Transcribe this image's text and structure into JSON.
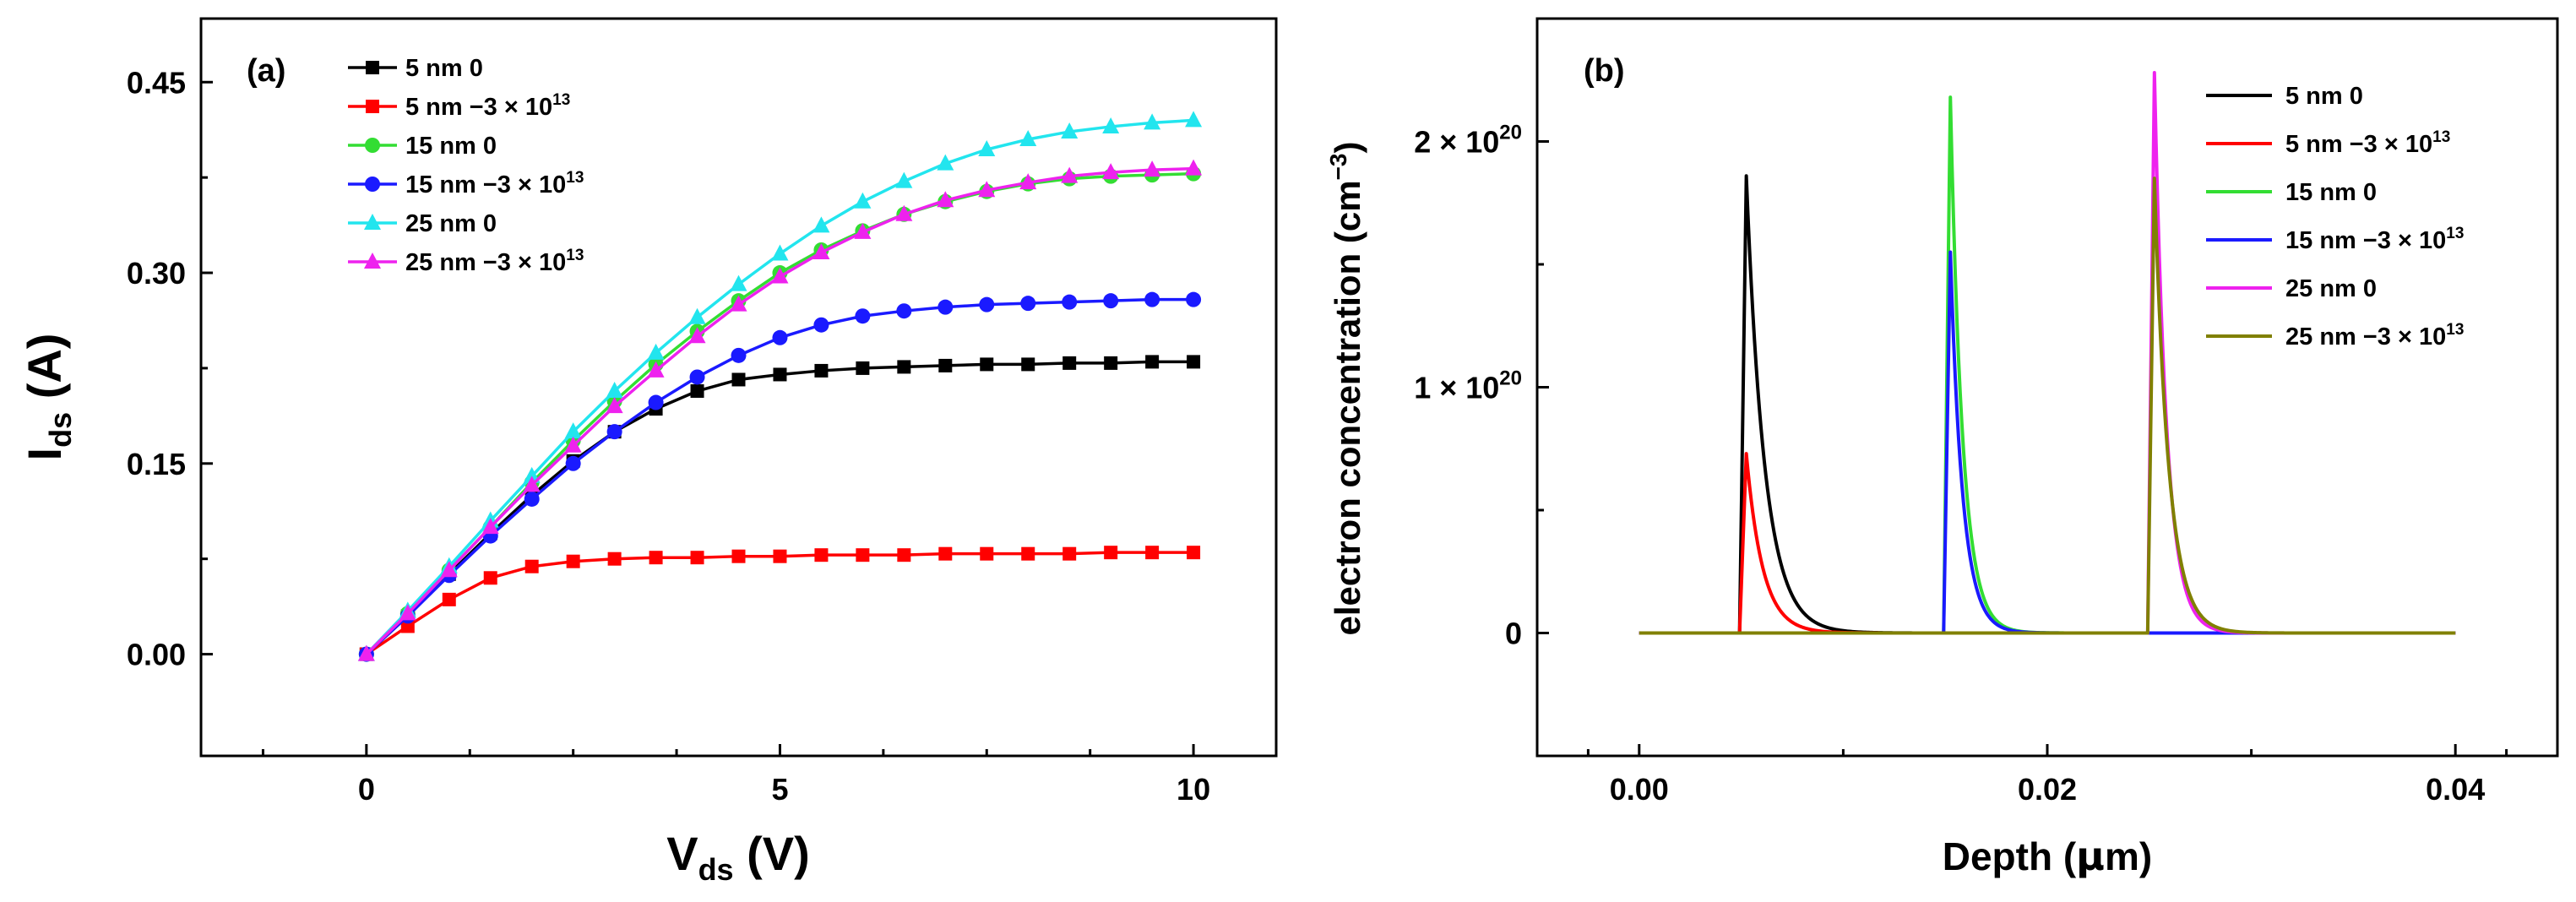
{
  "chart_data": [
    {
      "panel_label": "(a)",
      "type": "line",
      "xlabel_main": "V",
      "xlabel_sub": "ds",
      "xlabel_unit": " (V)",
      "ylabel_main": "I",
      "ylabel_sub": "ds",
      "ylabel_unit": " (A)",
      "xlim": [
        -2,
        11
      ],
      "ylim": [
        -0.08,
        0.5
      ],
      "xticks": [
        0,
        5,
        10
      ],
      "yticks": [
        0.0,
        0.15,
        0.3,
        0.45
      ],
      "xtick_labels": [
        "0",
        "5",
        "10"
      ],
      "ytick_labels": [
        "0.00",
        "0.15",
        "0.30",
        "0.45"
      ],
      "legend_position": "top-left",
      "x": [
        0,
        0.5,
        1,
        1.5,
        2,
        2.5,
        3,
        3.5,
        4,
        4.5,
        5,
        5.5,
        6,
        6.5,
        7,
        7.5,
        8,
        8.5,
        9,
        9.5,
        10
      ],
      "series": [
        {
          "name": "5 nm 0",
          "name_sup": "",
          "color": "#000000",
          "marker": "square",
          "values": [
            0,
            0.03,
            0.063,
            0.095,
            0.125,
            0.152,
            0.175,
            0.193,
            0.207,
            0.216,
            0.22,
            0.223,
            0.225,
            0.226,
            0.227,
            0.228,
            0.228,
            0.229,
            0.229,
            0.23,
            0.23
          ]
        },
        {
          "name": "5 nm −3 × 10",
          "name_sup": "13",
          "color": "#ff0000",
          "marker": "square",
          "values": [
            0,
            0.022,
            0.043,
            0.06,
            0.069,
            0.073,
            0.075,
            0.076,
            0.076,
            0.077,
            0.077,
            0.078,
            0.078,
            0.078,
            0.079,
            0.079,
            0.079,
            0.079,
            0.08,
            0.08,
            0.08
          ]
        },
        {
          "name": "15 nm 0",
          "name_sup": "",
          "color": "#33dd33",
          "marker": "circle",
          "values": [
            0,
            0.032,
            0.066,
            0.1,
            0.135,
            0.168,
            0.199,
            0.228,
            0.254,
            0.278,
            0.3,
            0.318,
            0.333,
            0.346,
            0.356,
            0.364,
            0.37,
            0.374,
            0.376,
            0.377,
            0.378
          ]
        },
        {
          "name": "15 nm −3 × 10",
          "name_sup": "13",
          "color": "#1a1aff",
          "marker": "circle",
          "values": [
            0,
            0.03,
            0.062,
            0.093,
            0.122,
            0.15,
            0.175,
            0.198,
            0.218,
            0.235,
            0.249,
            0.259,
            0.266,
            0.27,
            0.273,
            0.275,
            0.276,
            0.277,
            0.278,
            0.279,
            0.279
          ]
        },
        {
          "name": "25 nm 0",
          "name_sup": "",
          "color": "#22e5ee",
          "marker": "triangle",
          "values": [
            0,
            0.034,
            0.069,
            0.105,
            0.14,
            0.175,
            0.207,
            0.237,
            0.265,
            0.291,
            0.315,
            0.337,
            0.356,
            0.372,
            0.386,
            0.397,
            0.405,
            0.411,
            0.415,
            0.418,
            0.42
          ]
        },
        {
          "name": "25 nm −3 × 10",
          "name_sup": "13",
          "color": "#ee22ee",
          "marker": "triangle",
          "values": [
            0,
            0.032,
            0.066,
            0.1,
            0.133,
            0.164,
            0.195,
            0.223,
            0.25,
            0.275,
            0.297,
            0.316,
            0.332,
            0.346,
            0.357,
            0.365,
            0.371,
            0.376,
            0.379,
            0.381,
            0.382
          ]
        }
      ]
    },
    {
      "panel_label": "(b)",
      "type": "line",
      "xlabel_pre": "Depth (",
      "xlabel_mu": "μ",
      "xlabel_post": "m)",
      "ylabel_main": "electron concentration (cm",
      "ylabel_sup": "−3",
      "ylabel_close": ")",
      "xlim": [
        -0.005,
        0.045
      ],
      "ylim": [
        -5e+19,
        2.5e+20
      ],
      "xticks": [
        0.0,
        0.02,
        0.04
      ],
      "xtick_labels": [
        "0.00",
        "0.02",
        "0.04"
      ],
      "yticks": [
        0,
        1e+20,
        2e+20
      ],
      "ytick_labels": [
        {
          "main": "0",
          "sup": ""
        },
        {
          "main": "1 × 10",
          "sup": "20"
        },
        {
          "main": "2 × 10",
          "sup": "20"
        }
      ],
      "legend_position": "top-right",
      "series": [
        {
          "name": "5 nm 0",
          "name_sup": "",
          "color": "#000000",
          "x0": 0.005,
          "peak": 1.86e+20,
          "decay": 0.0009
        },
        {
          "name": "5 nm −3 × 10",
          "name_sup": "13",
          "color": "#ff0000",
          "x0": 0.005,
          "peak": 7.3e+19,
          "decay": 0.0008
        },
        {
          "name": "15 nm 0",
          "name_sup": "",
          "color": "#33dd33",
          "x0": 0.015,
          "peak": 2.18e+20,
          "decay": 0.0006
        },
        {
          "name": "15 nm −3 × 10",
          "name_sup": "13",
          "color": "#1a1aff",
          "x0": 0.015,
          "peak": 1.55e+20,
          "decay": 0.0006
        },
        {
          "name": "25 nm 0",
          "name_sup": "",
          "color": "#ee22ee",
          "x0": 0.025,
          "peak": 2.28e+20,
          "decay": 0.0006
        },
        {
          "name": "25 nm −3 × 10",
          "name_sup": "13",
          "color": "#808000",
          "x0": 0.025,
          "peak": 1.85e+20,
          "decay": 0.0007
        }
      ]
    }
  ]
}
